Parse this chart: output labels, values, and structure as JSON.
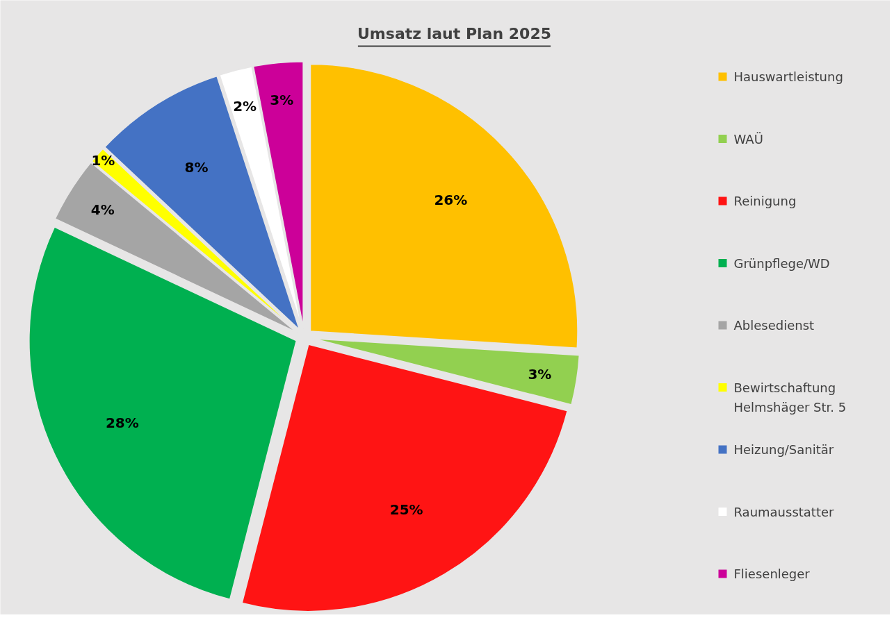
{
  "chart_data": {
    "type": "pie",
    "title": "Umsatz laut Plan 2025",
    "categories": [
      "Hauswartleistung",
      "WAÜ",
      "Reinigung",
      "Grünpflege/WD",
      "Ablesedienst",
      "Bewirtschaftung Helmshäger Str. 5",
      "Heizung/Sanitär",
      "Raumausstatter",
      "Fliesenleger"
    ],
    "values": [
      26,
      3,
      25,
      28,
      4,
      1,
      8,
      2,
      3
    ],
    "colors": [
      "#ffc000",
      "#92d050",
      "#ff1414",
      "#00b050",
      "#a5a5a5",
      "#ffff00",
      "#4472c4",
      "#ffffff",
      "#cc0099"
    ],
    "value_labels": [
      "26%",
      "3%",
      "25%",
      "28%",
      "4%",
      "1%",
      "8%",
      "2%",
      "3%"
    ],
    "legend": "right"
  }
}
